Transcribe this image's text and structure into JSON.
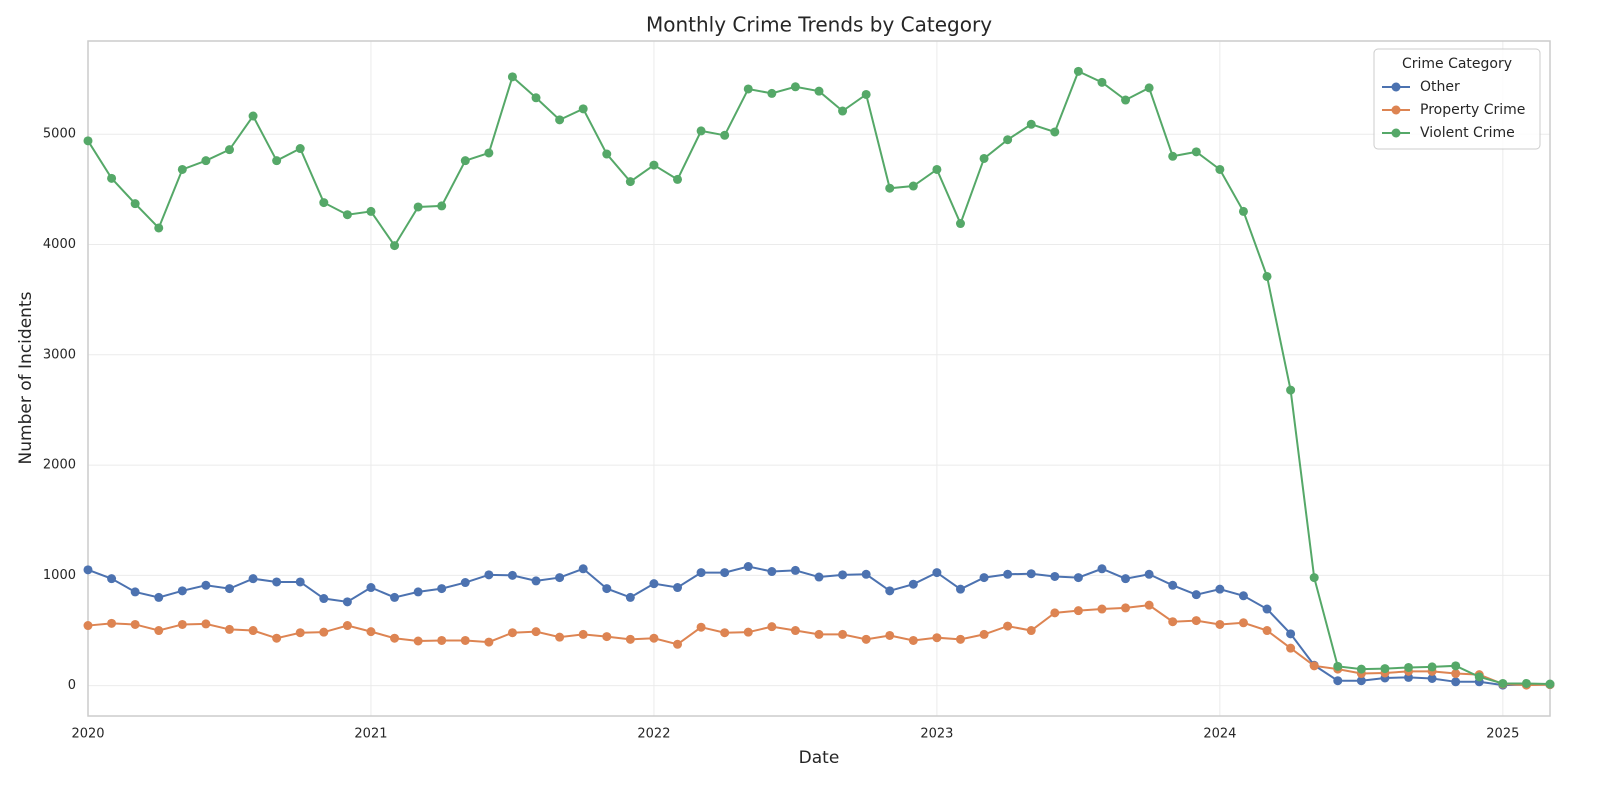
{
  "chart_data": {
    "type": "line",
    "title": "Monthly Crime Trends by Category",
    "x_label": "Date",
    "y_label": "Number of Incidents",
    "x": [
      "2020-01",
      "2020-02",
      "2020-03",
      "2020-04",
      "2020-05",
      "2020-06",
      "2020-07",
      "2020-08",
      "2020-09",
      "2020-10",
      "2020-11",
      "2020-12",
      "2021-01",
      "2021-02",
      "2021-03",
      "2021-04",
      "2021-05",
      "2021-06",
      "2021-07",
      "2021-08",
      "2021-09",
      "2021-10",
      "2021-11",
      "2021-12",
      "2022-01",
      "2022-02",
      "2022-03",
      "2022-04",
      "2022-05",
      "2022-06",
      "2022-07",
      "2022-08",
      "2022-09",
      "2022-10",
      "2022-11",
      "2022-12",
      "2023-01",
      "2023-02",
      "2023-03",
      "2023-04",
      "2023-05",
      "2023-06",
      "2023-07",
      "2023-08",
      "2023-09",
      "2023-10",
      "2023-11",
      "2023-12",
      "2024-01",
      "2024-02",
      "2024-03",
      "2024-04",
      "2024-05",
      "2024-06",
      "2024-07",
      "2024-08",
      "2024-09",
      "2024-10",
      "2024-11",
      "2024-12",
      "2025-01",
      "2025-02",
      "2025-03"
    ],
    "series": [
      {
        "name": "Other",
        "color": "#4c72b0",
        "values": [
          1050,
          970,
          850,
          800,
          860,
          910,
          880,
          970,
          940,
          940,
          790,
          760,
          890,
          800,
          850,
          880,
          935,
          1005,
          1000,
          950,
          980,
          1060,
          880,
          800,
          925,
          890,
          1025,
          1025,
          1080,
          1035,
          1045,
          985,
          1005,
          1010,
          860,
          920,
          1025,
          875,
          980,
          1010,
          1015,
          990,
          980,
          1060,
          970,
          1010,
          910,
          825,
          875,
          815,
          695,
          470,
          185,
          45,
          45,
          70,
          75,
          65,
          35,
          35,
          5,
          10,
          10
        ]
      },
      {
        "name": "Property Crime",
        "color": "#dd8452",
        "values": [
          545,
          565,
          555,
          500,
          555,
          560,
          510,
          500,
          430,
          480,
          485,
          545,
          490,
          430,
          405,
          410,
          410,
          395,
          480,
          490,
          440,
          465,
          445,
          420,
          430,
          375,
          530,
          480,
          485,
          535,
          500,
          465,
          465,
          420,
          455,
          410,
          435,
          420,
          465,
          540,
          500,
          660,
          680,
          695,
          705,
          730,
          580,
          590,
          555,
          570,
          500,
          340,
          180,
          150,
          110,
          115,
          130,
          130,
          110,
          100,
          15,
          5,
          10
        ]
      },
      {
        "name": "Violent Crime",
        "color": "#55a868",
        "values": [
          4940,
          4600,
          4370,
          4150,
          4680,
          4760,
          4860,
          5165,
          4760,
          4870,
          4380,
          4270,
          4300,
          3990,
          4340,
          4350,
          4760,
          4830,
          5520,
          5330,
          5130,
          5230,
          4820,
          4570,
          4720,
          4590,
          5030,
          4990,
          5410,
          5370,
          5430,
          5390,
          5210,
          5360,
          4510,
          4530,
          4680,
          4190,
          4780,
          4950,
          5090,
          5020,
          5570,
          5470,
          5310,
          5420,
          4800,
          4840,
          4680,
          4300,
          3710,
          2680,
          980,
          175,
          150,
          155,
          165,
          170,
          180,
          80,
          20,
          20,
          15
        ]
      }
    ],
    "xlim": [
      "2020-01",
      "2025-03"
    ],
    "xticks": [
      {
        "value": "2020-01",
        "label": "2020"
      },
      {
        "value": "2021-01",
        "label": "2021"
      },
      {
        "value": "2022-01",
        "label": "2022"
      },
      {
        "value": "2023-01",
        "label": "2023"
      },
      {
        "value": "2024-01",
        "label": "2024"
      },
      {
        "value": "2025-01",
        "label": "2025"
      }
    ],
    "ylim": [
      -275,
      5845
    ],
    "yticks": [
      0,
      1000,
      2000,
      3000,
      4000,
      5000
    ],
    "grid": true,
    "legend": {
      "title": "Crime Category",
      "position": "upper right"
    }
  }
}
